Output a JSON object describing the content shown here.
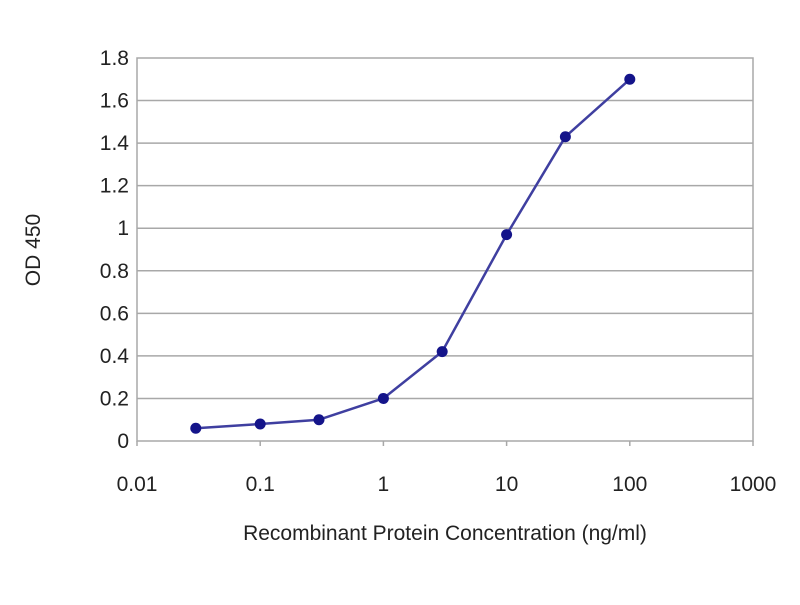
{
  "chart_data": {
    "type": "line",
    "xscale": "log",
    "xlim": [
      0.01,
      1000
    ],
    "ylim": [
      0,
      1.8
    ],
    "xlabel": "Recombinant Protein Concentration (ng/ml)",
    "ylabel": "OD 450",
    "x_ticks": [
      0.01,
      0.1,
      1,
      10,
      100,
      1000
    ],
    "x_tick_labels": [
      "0.01",
      "0.1",
      "1",
      "10",
      "100",
      "1000"
    ],
    "y_ticks": [
      0,
      0.2,
      0.4,
      0.6,
      0.8,
      1,
      1.2,
      1.4,
      1.6,
      1.8
    ],
    "y_tick_labels": [
      "0",
      "0.2",
      "0.4",
      "0.6",
      "0.8",
      "1",
      "1.2",
      "1.4",
      "1.6",
      "1.8"
    ],
    "grid": "horizontal",
    "series": [
      {
        "x": [
          0.03,
          0.1,
          0.3,
          1,
          3,
          10,
          30,
          100
        ],
        "y": [
          0.06,
          0.08,
          0.1,
          0.2,
          0.42,
          0.97,
          1.43,
          1.7
        ]
      }
    ],
    "colors": {
      "line": "#3f3fa0",
      "marker": "#14148a",
      "grid": "#a8a8a8",
      "frame": "#a8a8a8"
    }
  }
}
